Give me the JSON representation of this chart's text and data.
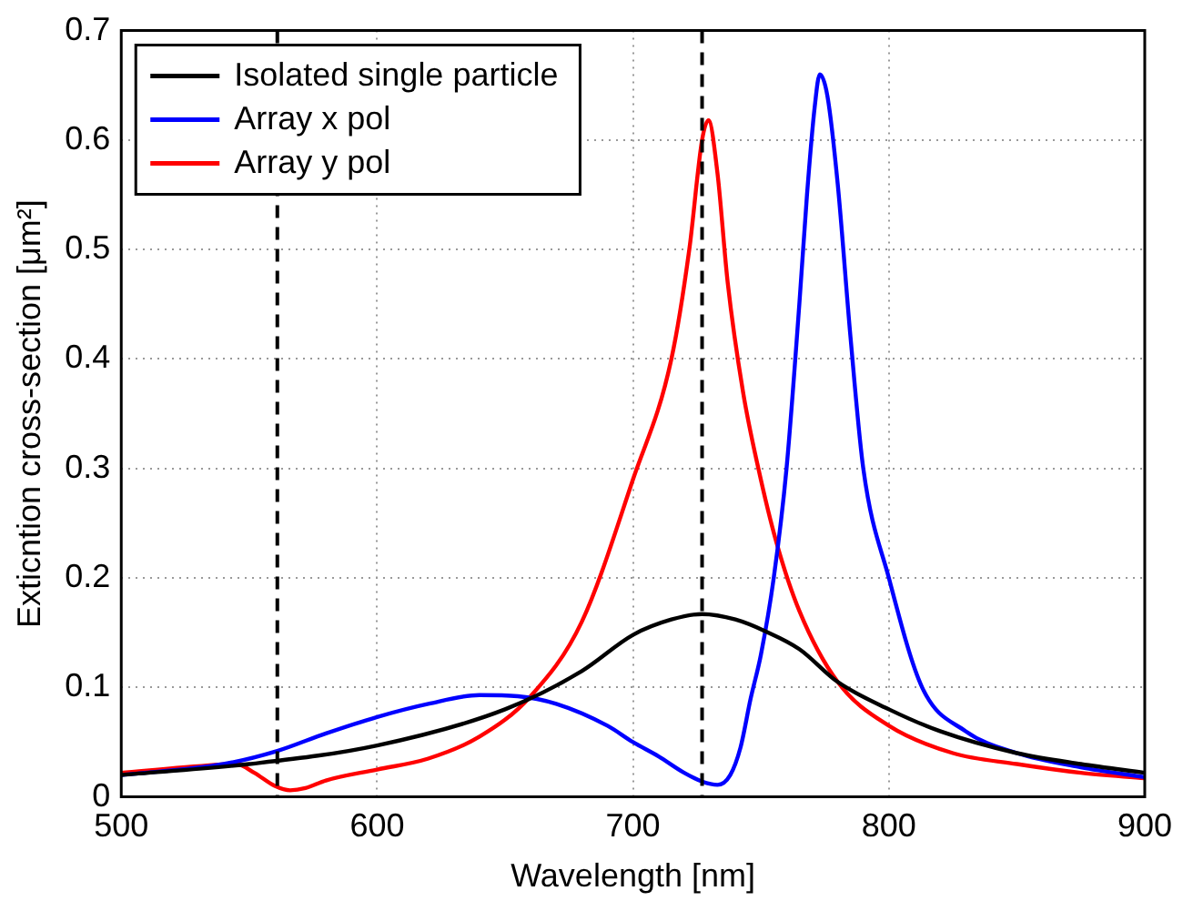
{
  "chart_data": {
    "type": "line",
    "xlabel": "Wavelength [nm]",
    "ylabel": "Exticntion cross-section [μm²]",
    "xlim": [
      500,
      900
    ],
    "xticks": [
      500,
      600,
      700,
      800,
      900
    ],
    "ylim": [
      0,
      0.7
    ],
    "yticks": [
      0,
      0.1,
      0.2,
      0.3,
      0.4,
      0.5,
      0.6,
      0.7
    ],
    "grid": true,
    "legend": "top left",
    "marker": "none",
    "line_style": "solid",
    "ref_lines": [
      {
        "axis": "x",
        "value": 561,
        "color": "#000000",
        "line_style": "dashed"
      },
      {
        "axis": "x",
        "value": 727,
        "color": "#000000",
        "line_style": "dashed"
      }
    ],
    "series": [
      {
        "name": "Isolated single particle",
        "color": "#000000",
        "x": [
          500,
          550,
          600,
          650,
          680,
          700,
          715,
          727,
          740,
          752,
          765,
          780,
          800,
          820,
          850,
          875,
          900
        ],
        "values": [
          0.02,
          0.03,
          0.047,
          0.08,
          0.115,
          0.148,
          0.162,
          0.167,
          0.162,
          0.151,
          0.135,
          0.105,
          0.08,
          0.06,
          0.04,
          0.03,
          0.022
        ]
      },
      {
        "name": "Array x pol",
        "color": "#0000ff",
        "x": [
          500,
          540,
          561,
          580,
          600,
          620,
          640,
          655,
          670,
          690,
          700,
          710,
          720,
          727,
          733,
          738,
          742,
          746,
          750,
          755,
          760,
          765,
          768,
          771,
          773,
          776,
          780,
          785,
          790,
          800,
          813,
          830,
          850,
          875,
          900
        ],
        "values": [
          0.02,
          0.03,
          0.042,
          0.058,
          0.073,
          0.085,
          0.093,
          0.092,
          0.085,
          0.065,
          0.05,
          0.037,
          0.022,
          0.014,
          0.011,
          0.02,
          0.045,
          0.09,
          0.13,
          0.2,
          0.3,
          0.45,
          0.55,
          0.63,
          0.66,
          0.64,
          0.56,
          0.42,
          0.3,
          0.2,
          0.1,
          0.06,
          0.04,
          0.027,
          0.018
        ]
      },
      {
        "name": "Array y pol",
        "color": "#ff0000",
        "x": [
          500,
          530,
          545,
          552,
          560,
          566,
          572,
          580,
          600,
          620,
          640,
          660,
          680,
          700,
          715,
          722,
          727,
          729.5,
          733,
          737,
          743,
          749,
          756,
          765,
          780,
          800,
          825,
          850,
          875,
          900
        ],
        "values": [
          0.022,
          0.028,
          0.03,
          0.022,
          0.01,
          0.006,
          0.008,
          0.015,
          0.025,
          0.035,
          0.055,
          0.092,
          0.16,
          0.29,
          0.4,
          0.5,
          0.6,
          0.618,
          0.57,
          0.47,
          0.37,
          0.3,
          0.233,
          0.17,
          0.105,
          0.065,
          0.04,
          0.03,
          0.022,
          0.017
        ]
      }
    ]
  }
}
